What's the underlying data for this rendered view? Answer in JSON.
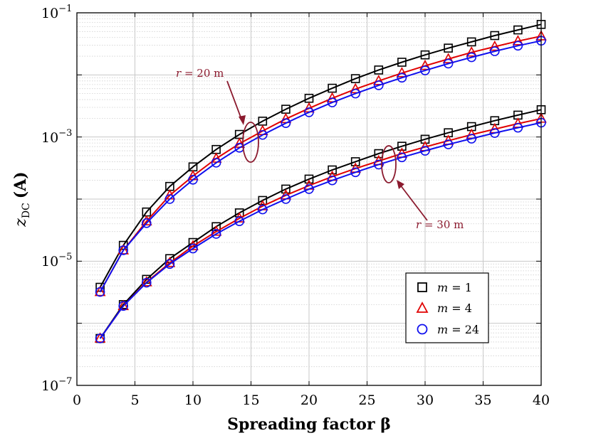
{
  "chart_data": {
    "type": "line",
    "title": "",
    "xlabel": "Spreading factor β",
    "ylabel": "zDC (A)",
    "ylabel_main": "z",
    "ylabel_sub": "DC",
    "ylabel_unit": "(A)",
    "xlim": [
      0,
      40
    ],
    "ylim": [
      1e-07,
      0.1
    ],
    "yscale": "log",
    "grid": true,
    "x_ticks": [
      "0",
      "5",
      "10",
      "15",
      "20",
      "25",
      "30",
      "35",
      "40"
    ],
    "y_ticks": [
      {
        "base": "10",
        "exp": "−7",
        "value": 1e-07
      },
      {
        "base": "10",
        "exp": "−5",
        "value": 1e-05
      },
      {
        "base": "10",
        "exp": "−3",
        "value": 0.001
      },
      {
        "base": "10",
        "exp": "−1",
        "value": 0.1
      }
    ],
    "x": [
      2,
      4,
      6,
      8,
      10,
      12,
      14,
      16,
      18,
      20,
      22,
      24,
      26,
      28,
      30,
      32,
      34,
      36,
      38,
      40
    ],
    "series": [
      {
        "name": "m = 1",
        "group": "r = 20 m",
        "marker": "square",
        "color": "#000000",
        "values": [
          3.8e-06,
          1.8e-05,
          6.2e-05,
          0.00016,
          0.00033,
          0.00063,
          0.0011,
          0.0018,
          0.0028,
          0.0042,
          0.0061,
          0.0087,
          0.012,
          0.016,
          0.021,
          0.027,
          0.034,
          0.043,
          0.053,
          0.065
        ]
      },
      {
        "name": "m = 4",
        "group": "r = 20 m",
        "marker": "triangle",
        "color": "#e00000",
        "values": [
          3.2e-06,
          1.5e-05,
          4.4e-05,
          0.000115,
          0.000235,
          0.00045,
          0.00078,
          0.00125,
          0.00195,
          0.0029,
          0.0042,
          0.0059,
          0.008,
          0.0107,
          0.014,
          0.018,
          0.023,
          0.0285,
          0.035,
          0.042
        ]
      },
      {
        "name": "m = 24",
        "group": "r = 20 m",
        "marker": "circle",
        "color": "#1010ee",
        "values": [
          3.2e-06,
          1.5e-05,
          4.1e-05,
          0.0001,
          0.000205,
          0.000385,
          0.00067,
          0.00108,
          0.00167,
          0.0025,
          0.0036,
          0.005,
          0.0068,
          0.009,
          0.0118,
          0.0152,
          0.0192,
          0.024,
          0.0295,
          0.0355
        ]
      },
      {
        "name": "m = 1",
        "group": "r = 30 m",
        "marker": "square",
        "color": "#000000",
        "values": [
          5.7e-07,
          2e-06,
          5.1e-06,
          1.1e-05,
          2e-05,
          3.6e-05,
          6e-05,
          9.5e-05,
          0.000145,
          0.00021,
          0.000295,
          0.0004,
          0.00054,
          0.00071,
          0.00092,
          0.00117,
          0.00147,
          0.00183,
          0.00225,
          0.00275
        ]
      },
      {
        "name": "m = 4",
        "group": "r = 30 m",
        "marker": "triangle",
        "color": "#e00000",
        "values": [
          5.7e-07,
          1.9e-06,
          4.6e-06,
          9.4e-06,
          1.75e-05,
          3e-05,
          4.9e-05,
          7.7e-05,
          0.000115,
          0.000165,
          0.00023,
          0.00031,
          0.00041,
          0.00054,
          0.00069,
          0.00087,
          0.00109,
          0.00134,
          0.00164,
          0.00198
        ]
      },
      {
        "name": "m = 24",
        "group": "r = 30 m",
        "marker": "circle",
        "color": "#1010ee",
        "values": [
          5.7e-07,
          1.9e-06,
          4.5e-06,
          9e-06,
          1.6e-05,
          2.75e-05,
          4.4e-05,
          6.8e-05,
          0.0001,
          0.000145,
          0.0002,
          0.00027,
          0.00036,
          0.00047,
          0.0006,
          0.00076,
          0.00094,
          0.00116,
          0.00141,
          0.0017
        ]
      }
    ],
    "annotations": [
      {
        "text_var": "r",
        "text_rest": " = 20 m",
        "target_x": 14.7,
        "target_y": 0.0009
      },
      {
        "text_var": "r",
        "text_rest": " = 30 m",
        "target_x": 27.1,
        "target_y": 0.00036
      }
    ],
    "legend": {
      "position": "lower-right",
      "entries": [
        {
          "var": "m",
          "rest": " = 1",
          "marker": "square",
          "color": "#000000"
        },
        {
          "var": "m",
          "rest": " = 4",
          "marker": "triangle",
          "color": "#e00000"
        },
        {
          "var": "m",
          "rest": " = 24",
          "marker": "circle",
          "color": "#1010ee"
        }
      ]
    },
    "colors": {
      "annotation": "#8b1a2e",
      "grid": "#c8c8c8",
      "axis": "#000000"
    }
  }
}
